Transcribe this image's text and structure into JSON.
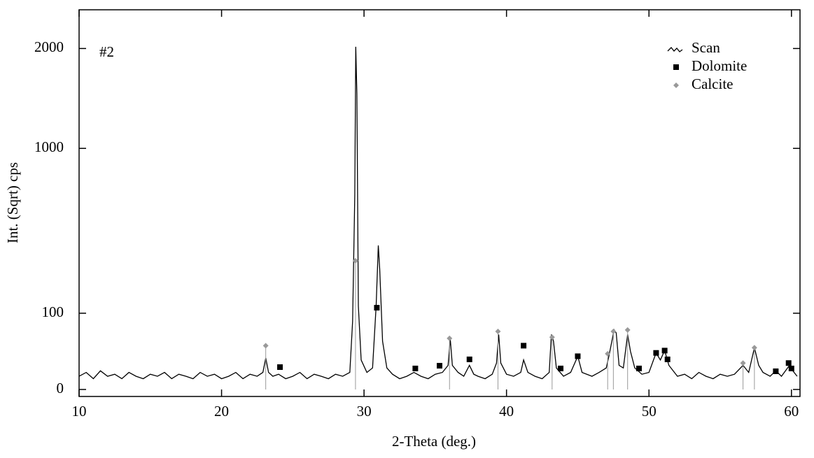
{
  "chart_data": {
    "type": "line",
    "annotation": "#2",
    "x_label": "2-Theta (deg.)",
    "y_label": "Int. (Sqrt) cps",
    "y_scale": "sqrt",
    "xlim": [
      10,
      60.6
    ],
    "ylim": [
      0,
      2480
    ],
    "xticks": [
      10,
      20,
      30,
      40,
      50,
      60
    ],
    "yticks": [
      0,
      100,
      1000,
      2000
    ],
    "legend": "top-right",
    "series": [
      {
        "name": "Scan",
        "color": "#000000",
        "marker": "line",
        "x": [
          10,
          10.5,
          11,
          11.5,
          12,
          12.5,
          13,
          13.5,
          14,
          14.5,
          15,
          15.5,
          16,
          16.5,
          17,
          17.5,
          18,
          18.5,
          19,
          19.5,
          20,
          20.5,
          21,
          21.5,
          22,
          22.5,
          22.9,
          23.1,
          23.3,
          23.6,
          24,
          24.5,
          25,
          25.5,
          26,
          26.5,
          27,
          27.5,
          28,
          28.5,
          29,
          29.2,
          29.35,
          29.42,
          29.5,
          29.6,
          29.8,
          30.2,
          30.6,
          30.85,
          31.0,
          31.1,
          31.3,
          31.6,
          32,
          32.5,
          33,
          33.5,
          34,
          34.5,
          35,
          35.5,
          35.9,
          36.05,
          36.2,
          36.6,
          37,
          37.4,
          37.7,
          38,
          38.5,
          39,
          39.3,
          39.45,
          39.6,
          40,
          40.5,
          41,
          41.2,
          41.5,
          42,
          42.5,
          43,
          43.15,
          43.3,
          43.5,
          44,
          44.5,
          45,
          45.3,
          46,
          46.5,
          47,
          47.2,
          47.55,
          47.7,
          47.9,
          48.2,
          48.5,
          48.7,
          49,
          49.5,
          50,
          50.5,
          50.8,
          51.1,
          51.4,
          52,
          52.5,
          53,
          53.5,
          54,
          54.5,
          55,
          55.5,
          56,
          56.6,
          57,
          57.4,
          57.7,
          58,
          58.5,
          58.9,
          59.3,
          59.8,
          60.1,
          60.4
        ],
        "values": [
          3,
          5,
          2,
          6,
          3,
          4,
          2,
          5,
          3,
          2,
          4,
          3,
          5,
          2,
          4,
          3,
          2,
          5,
          3,
          4,
          2,
          3,
          5,
          2,
          4,
          3,
          5,
          17,
          5,
          3,
          4,
          2,
          3,
          5,
          2,
          4,
          3,
          2,
          4,
          3,
          5,
          80,
          650,
          2020,
          1500,
          120,
          15,
          5,
          8,
          120,
          357,
          250,
          40,
          8,
          4,
          2,
          3,
          5,
          3,
          2,
          4,
          5,
          10,
          44,
          10,
          5,
          3,
          10,
          4,
          3,
          2,
          4,
          12,
          52,
          12,
          4,
          3,
          5,
          15,
          5,
          3,
          2,
          5,
          52,
          40,
          8,
          3,
          5,
          19,
          5,
          3,
          5,
          8,
          20,
          61,
          55,
          10,
          8,
          52,
          25,
          8,
          4,
          5,
          23,
          15,
          26,
          10,
          3,
          4,
          2,
          5,
          3,
          2,
          4,
          3,
          4,
          10,
          5,
          30,
          10,
          5,
          3,
          6,
          3,
          9,
          6,
          3
        ]
      },
      {
        "name": "Dolomite",
        "color": "#000000",
        "marker": "square",
        "x": [
          24.1,
          30.9,
          33.6,
          35.3,
          37.4,
          41.2,
          43.8,
          45.0,
          49.3,
          50.5,
          51.1,
          51.3,
          58.9,
          59.8,
          60.0
        ],
        "values": [
          8.6,
          115,
          7.6,
          9.7,
          15.6,
          33,
          7.6,
          19,
          7.6,
          23,
          26,
          15.6,
          5.7,
          12,
          7.6
        ]
      },
      {
        "name": "Calcite",
        "color": "#999999",
        "marker": "diamond",
        "x": [
          23.1,
          29.4,
          36.0,
          39.4,
          43.2,
          47.1,
          47.5,
          48.5,
          56.6,
          57.4
        ],
        "values": [
          33,
          285,
          45,
          58,
          47,
          22,
          58,
          61,
          12,
          30
        ]
      }
    ]
  }
}
